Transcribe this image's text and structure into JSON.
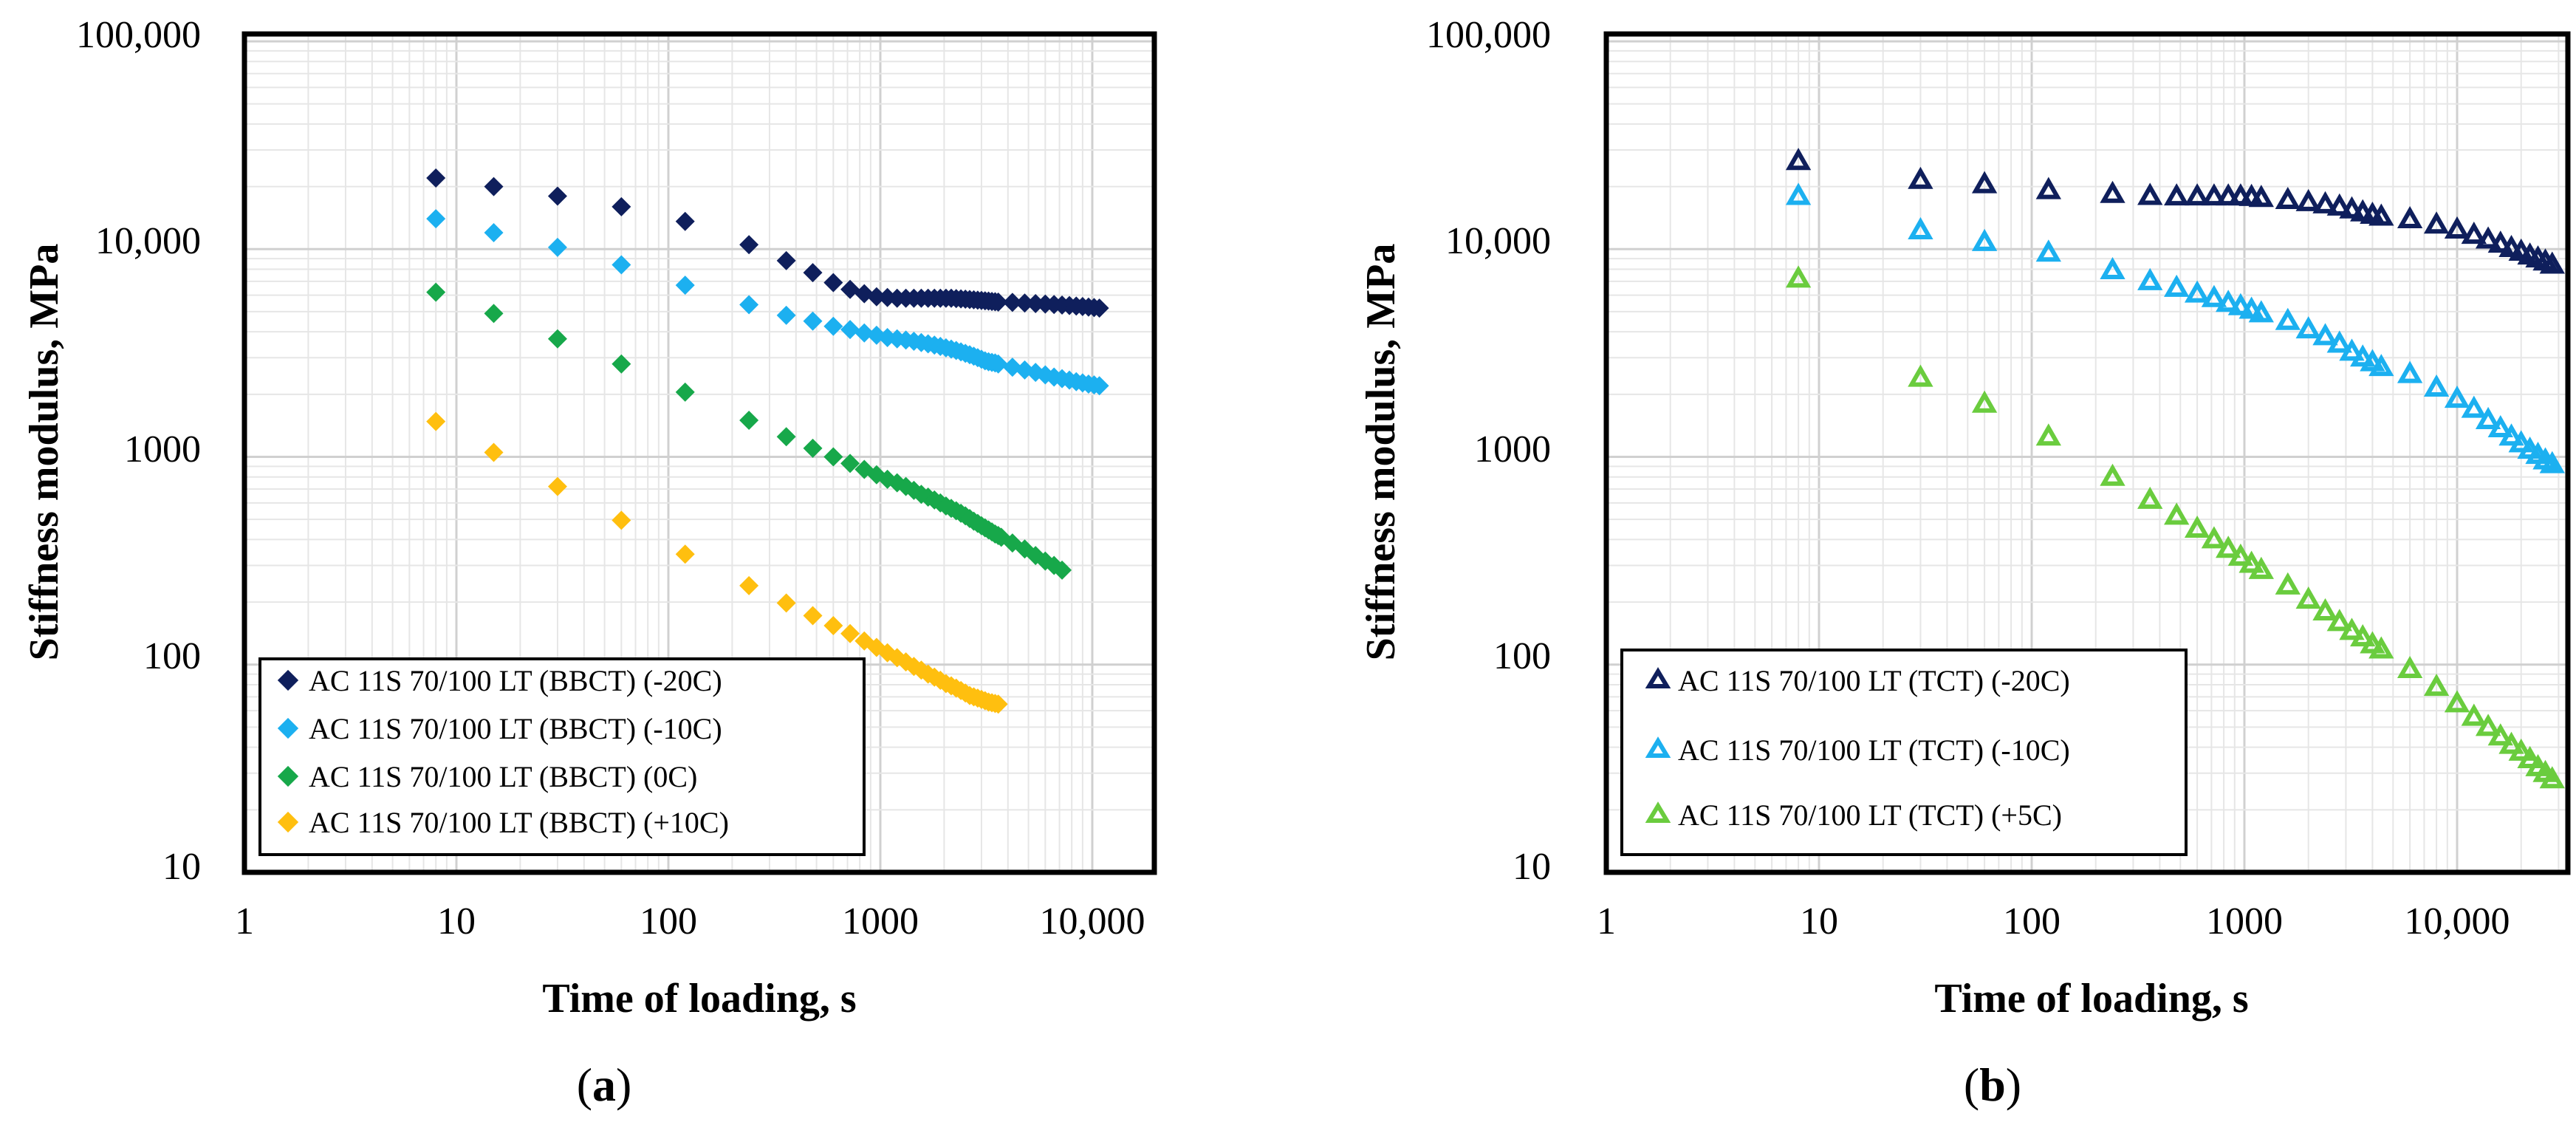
{
  "chart_data": [
    {
      "id": "a",
      "type": "scatter",
      "caption": "a",
      "xlabel": "Time of loading, s",
      "ylabel": "Stiffness modulus, MPa",
      "xscale": "log",
      "yscale": "log",
      "xlim": [
        1,
        20000
      ],
      "ylim": [
        10,
        100000
      ],
      "xticks": [
        1,
        10,
        100,
        1000,
        10000
      ],
      "xtick_labels": [
        "1",
        "10",
        "100",
        "1000",
        "10,000"
      ],
      "yticks": [
        10,
        100,
        1000,
        10000,
        100000
      ],
      "ytick_labels": [
        "10",
        "100",
        "1000",
        "10,000",
        "100,000"
      ],
      "grid": true,
      "legend_position": "bottom-left",
      "series": [
        {
          "name": "AC 11S 70/100 LT (BBCT) (-20C)",
          "color": "#0f1f5c",
          "marker": "diamond",
          "x": [
            8,
            15,
            30,
            60,
            120,
            240,
            360,
            480,
            600,
            720,
            840,
            960,
            1080,
            1200,
            1320,
            1440,
            1560,
            1680,
            1800,
            1920,
            2040,
            2160,
            2280,
            2400,
            2520,
            2640,
            2760,
            2880,
            3000,
            3120,
            3240,
            3360,
            3480,
            3600,
            4200,
            4800,
            5400,
            6000,
            6600,
            7200,
            7800,
            8400,
            9000,
            9600,
            10200,
            10800
          ],
          "y": [
            22000,
            20000,
            18000,
            16000,
            13600,
            10500,
            8800,
            7700,
            6900,
            6400,
            6100,
            5900,
            5850,
            5800,
            5800,
            5800,
            5800,
            5800,
            5800,
            5800,
            5800,
            5800,
            5780,
            5760,
            5740,
            5720,
            5700,
            5680,
            5660,
            5640,
            5620,
            5600,
            5580,
            5560,
            5540,
            5500,
            5470,
            5440,
            5410,
            5380,
            5350,
            5320,
            5290,
            5260,
            5230,
            5200
          ]
        },
        {
          "name": "AC 11S 70/100 LT (BBCT) (-10C)",
          "color": "#1cb0f0",
          "marker": "diamond",
          "x": [
            8,
            15,
            30,
            60,
            120,
            240,
            360,
            480,
            600,
            720,
            840,
            960,
            1080,
            1200,
            1320,
            1440,
            1560,
            1680,
            1800,
            1920,
            2040,
            2160,
            2280,
            2400,
            2520,
            2640,
            2760,
            2880,
            3000,
            3120,
            3240,
            3360,
            3480,
            3600,
            4200,
            4800,
            5400,
            6000,
            6600,
            7200,
            7800,
            8400,
            9000,
            9600,
            10200,
            10800
          ],
          "y": [
            14000,
            12000,
            10200,
            8400,
            6700,
            5400,
            4800,
            4500,
            4250,
            4100,
            3950,
            3850,
            3750,
            3700,
            3650,
            3600,
            3550,
            3500,
            3450,
            3400,
            3350,
            3300,
            3250,
            3200,
            3150,
            3100,
            3050,
            3000,
            2950,
            2900,
            2870,
            2850,
            2830,
            2800,
            2700,
            2620,
            2550,
            2480,
            2420,
            2380,
            2340,
            2300,
            2270,
            2240,
            2220,
            2200
          ]
        },
        {
          "name": "AC 11S 70/100 LT (BBCT) (0C)",
          "color": "#17a84a",
          "marker": "diamond",
          "x": [
            8,
            15,
            30,
            60,
            120,
            240,
            360,
            480,
            600,
            720,
            840,
            960,
            1080,
            1200,
            1320,
            1440,
            1560,
            1680,
            1800,
            1920,
            2040,
            2160,
            2280,
            2400,
            2520,
            2640,
            2760,
            2880,
            3000,
            3120,
            3240,
            3360,
            3480,
            3600,
            3720,
            4200,
            4800,
            5400,
            6000,
            6600,
            7200
          ],
          "y": [
            6200,
            4900,
            3700,
            2800,
            2050,
            1500,
            1250,
            1100,
            1000,
            930,
            870,
            820,
            780,
            750,
            720,
            690,
            660,
            640,
            620,
            600,
            580,
            565,
            550,
            535,
            520,
            505,
            490,
            478,
            466,
            455,
            445,
            435,
            425,
            418,
            410,
            385,
            360,
            335,
            315,
            300,
            285
          ]
        },
        {
          "name": "AC 11S 70/100 LT (BBCT) (+10C)",
          "color": "#ffbf0f",
          "marker": "diamond",
          "x": [
            8,
            15,
            30,
            60,
            120,
            240,
            360,
            480,
            600,
            720,
            840,
            960,
            1080,
            1200,
            1320,
            1440,
            1560,
            1680,
            1800,
            1920,
            2040,
            2160,
            2280,
            2400,
            2520,
            2640,
            2760,
            2880,
            3000,
            3120,
            3240,
            3360,
            3480,
            3600
          ],
          "y": [
            1480,
            1050,
            720,
            495,
            340,
            240,
            198,
            172,
            154,
            141,
            130,
            121,
            114,
            108,
            103,
            98,
            94,
            90,
            87,
            84,
            81,
            79,
            77,
            75,
            73,
            71,
            70,
            69,
            68,
            67,
            66,
            65.5,
            65,
            64.5
          ]
        }
      ]
    },
    {
      "id": "b",
      "type": "scatter",
      "caption": "b",
      "xlabel": "Time of loading, s",
      "ylabel": "Stiffness modulus, MPa",
      "xscale": "log",
      "yscale": "log",
      "xlim": [
        1,
        30000
      ],
      "ylim": [
        10,
        100000
      ],
      "xticks": [
        1,
        10,
        100,
        1000,
        10000
      ],
      "xtick_labels": [
        "1",
        "10",
        "100",
        "1000",
        "10,000"
      ],
      "yticks": [
        10,
        100,
        1000,
        10000,
        100000
      ],
      "ytick_labels": [
        "10",
        "100",
        "1000",
        "10,000",
        "100,000"
      ],
      "grid": true,
      "legend_position": "bottom-left",
      "series": [
        {
          "name": "AC 11S 70/100 LT (TCT) (-20C)",
          "color": "#0f1f5c",
          "marker": "triangle-open",
          "x": [
            8,
            30,
            60,
            120,
            240,
            360,
            480,
            600,
            720,
            840,
            960,
            1080,
            1200,
            1600,
            2000,
            2400,
            2800,
            3200,
            3600,
            4000,
            4400,
            6000,
            8000,
            10000,
            12000,
            14000,
            16000,
            18000,
            20000,
            22000,
            24000,
            26000,
            28000
          ],
          "y": [
            26500,
            21500,
            20500,
            19200,
            18400,
            18000,
            17900,
            17900,
            17900,
            17900,
            17900,
            17800,
            17600,
            17200,
            16800,
            16400,
            16000,
            15500,
            15000,
            14600,
            14300,
            13900,
            13100,
            12400,
            11700,
            11100,
            10600,
            10100,
            9700,
            9300,
            9000,
            8700,
            8400
          ]
        },
        {
          "name": "AC 11S 70/100 LT (TCT) (-10C)",
          "color": "#1cb0f0",
          "marker": "triangle-open",
          "x": [
            8,
            30,
            60,
            120,
            240,
            360,
            480,
            600,
            720,
            840,
            960,
            1080,
            1200,
            1600,
            2000,
            2400,
            2800,
            3200,
            3600,
            4000,
            4400,
            6000,
            8000,
            10000,
            12000,
            14000,
            16000,
            18000,
            20000,
            22000,
            24000,
            26000,
            28000
          ],
          "y": [
            18000,
            12300,
            10800,
            9600,
            7900,
            7000,
            6500,
            6100,
            5800,
            5500,
            5300,
            5100,
            4900,
            4500,
            4100,
            3800,
            3500,
            3200,
            3000,
            2850,
            2700,
            2500,
            2150,
            1900,
            1700,
            1500,
            1370,
            1250,
            1160,
            1080,
            1020,
            960,
            920
          ]
        },
        {
          "name": "AC 11S 70/100 LT (TCT) (+5C)",
          "color": "#6acc3e",
          "marker": "triangle-open",
          "x": [
            8,
            30,
            60,
            120,
            240,
            360,
            480,
            600,
            720,
            840,
            960,
            1080,
            1200,
            1600,
            2000,
            2400,
            2800,
            3200,
            3600,
            4000,
            4400,
            6000,
            8000,
            10000,
            12000,
            14000,
            16000,
            18000,
            20000,
            22000,
            24000,
            26000,
            28000
          ],
          "y": [
            7200,
            2400,
            1800,
            1250,
            800,
            620,
            520,
            450,
            400,
            360,
            330,
            305,
            285,
            240,
            205,
            180,
            160,
            145,
            135,
            125,
            118,
            95,
            78,
            65,
            56,
            50,
            45,
            41,
            38,
            35,
            32,
            30,
            28
          ]
        }
      ]
    }
  ]
}
